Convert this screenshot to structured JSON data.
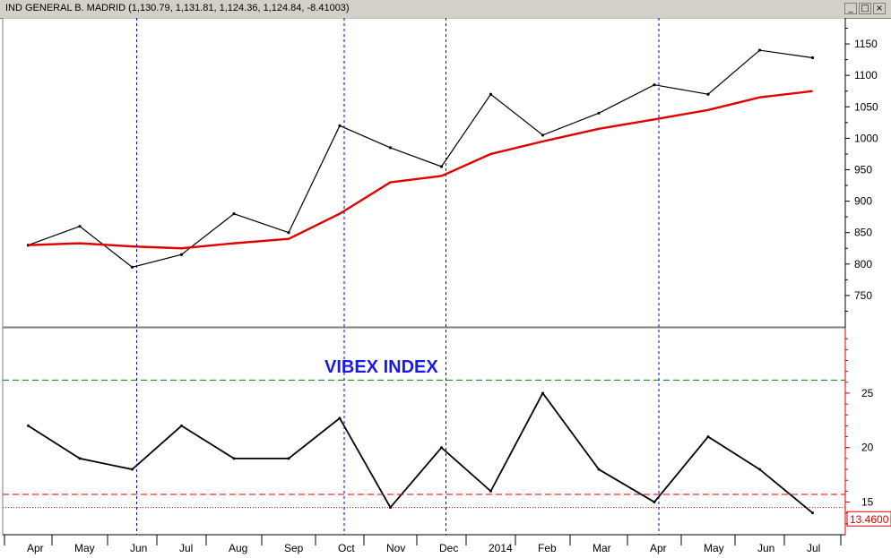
{
  "window": {
    "title": "IND GENERAL B. MADRID (1,130.79, 1,131.81, 1,124.36, 1,124.84, -8.41003)",
    "buttons": [
      "_",
      "□",
      "×"
    ]
  },
  "chart_data": [
    {
      "type": "line",
      "panel": "price",
      "title": "",
      "xlabel": "",
      "ylabel": "",
      "ylim": [
        700,
        1180
      ],
      "yticks": [
        750,
        800,
        850,
        900,
        950,
        1000,
        1050,
        1100,
        1150
      ],
      "x": [
        "Apr",
        "May",
        "Jun",
        "Jul",
        "Aug",
        "Sep",
        "Oct",
        "Nov",
        "Dec",
        "2014",
        "Feb",
        "Mar",
        "Apr",
        "May",
        "Jun",
        "Jul"
      ],
      "series": [
        {
          "values": [
            830,
            860,
            795,
            815,
            880,
            850,
            1020,
            985,
            955,
            1070,
            1005,
            1040,
            1085,
            1070,
            1140,
            1128
          ]
        },
        {
          "values": [
            830,
            833,
            828,
            825,
            833,
            840,
            880,
            930,
            940,
            975,
            995,
            1015,
            1030,
            1045,
            1065,
            1075
          ]
        }
      ],
      "series_colors": [
        "#000000",
        "#e00000"
      ],
      "vlines_after": [
        "Oct",
        "Dec",
        "Apr",
        "Jun"
      ],
      "grid": false
    },
    {
      "type": "line",
      "panel": "indicator",
      "title": "VIBEX INDEX",
      "ylim": [
        12,
        31
      ],
      "yticks": [
        15,
        20,
        25
      ],
      "x": [
        "Apr",
        "May",
        "Jun",
        "Jul",
        "Aug",
        "Sep",
        "Oct",
        "Nov",
        "Dec",
        "2014",
        "Feb",
        "Mar",
        "Apr",
        "May",
        "Jun",
        "Jul"
      ],
      "series": [
        {
          "values": [
            22,
            19,
            18,
            22,
            19,
            19,
            22.7,
            14.5,
            20,
            16,
            25,
            18,
            15,
            21,
            18,
            14
          ]
        }
      ],
      "series_colors": [
        "#000000"
      ],
      "hlines": [
        {
          "value": 26.2,
          "color": "#008000",
          "style": "dashed"
        },
        {
          "value": 15.7,
          "color": "#e00000",
          "style": "dashed"
        },
        {
          "value": 14.5,
          "color": "#e00000",
          "style": "dotted"
        }
      ],
      "last_value_label": "13.4600"
    }
  ]
}
